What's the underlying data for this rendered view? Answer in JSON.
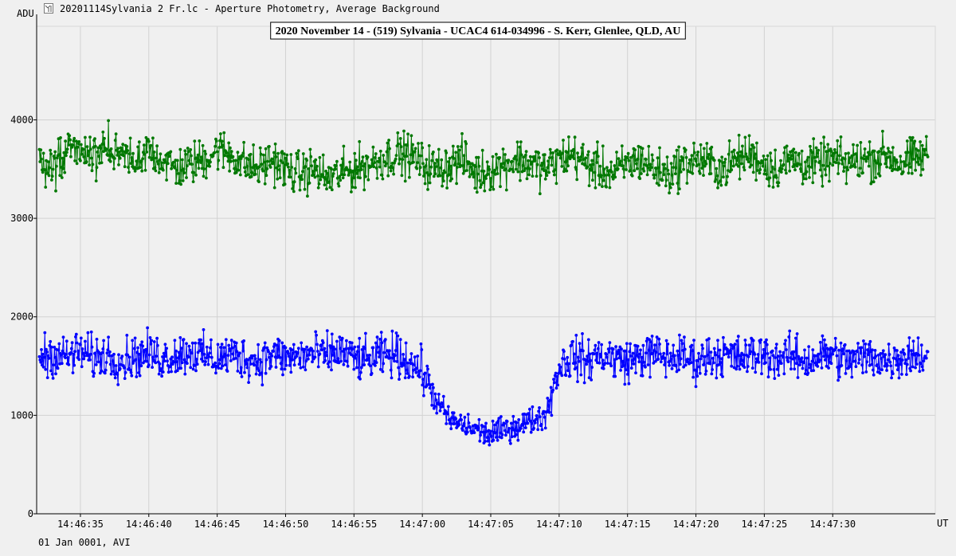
{
  "window": {
    "title": "20201114Sylvania 2 Fr.lc - Aperture Photometry, Average Background",
    "icon": "light-curve-app-icon"
  },
  "footer": {
    "status": "01 Jan 0001, AVI"
  },
  "chart_data": {
    "type": "line",
    "title": "2020 November 14 - (519) Sylvania - UCAC4 614-034996 - S. Kerr, Glenlee, QLD, AU",
    "xlabel": "UT",
    "ylabel": "ADU",
    "x_range": [
      "14:46:31.8",
      "14:47:37.5"
    ],
    "ylim": [
      0,
      4950
    ],
    "x_ticks": [
      "14:46:35",
      "14:46:40",
      "14:46:45",
      "14:46:50",
      "14:46:55",
      "14:47:00",
      "14:47:05",
      "14:47:10",
      "14:47:15",
      "14:47:20",
      "14:47:25",
      "14:47:30"
    ],
    "y_ticks": [
      0,
      1000,
      2000,
      3000,
      4000
    ],
    "grid": true,
    "legend": "none",
    "sampling": "approximately 20 samples per second, point-to-point noise of about ±300 ADU",
    "series": [
      {
        "color": "#007800",
        "step_seconds": 1,
        "start": "14:46:32",
        "values": [
          3600,
          3500,
          3650,
          3700,
          3600,
          3750,
          3650,
          3550,
          3700,
          3600,
          3500,
          3550,
          3600,
          3700,
          3650,
          3550,
          3500,
          3600,
          3500,
          3450,
          3500,
          3400,
          3450,
          3500,
          3550,
          3600,
          3650,
          3650,
          3550,
          3500,
          3550,
          3600,
          3450,
          3500,
          3550,
          3600,
          3550,
          3500,
          3600,
          3650,
          3550,
          3500,
          3450,
          3550,
          3600,
          3500,
          3450,
          3550,
          3600,
          3550,
          3500,
          3600,
          3650,
          3550,
          3500,
          3600,
          3550,
          3550,
          3600,
          3550,
          3600,
          3600,
          3650,
          3550,
          3600,
          3650
        ]
      },
      {
        "color": "#0000ff",
        "step_seconds": 1,
        "start": "14:46:32",
        "values": [
          1600,
          1620,
          1590,
          1650,
          1580,
          1620,
          1550,
          1600,
          1620,
          1580,
          1610,
          1650,
          1600,
          1570,
          1620,
          1580,
          1550,
          1620,
          1580,
          1600,
          1620,
          1600,
          1650,
          1580,
          1550,
          1600,
          1620,
          1550,
          1450,
          1150,
          950,
          900,
          850,
          800,
          850,
          900,
          950,
          1000,
          1500,
          1600,
          1550,
          1620,
          1580,
          1550,
          1600,
          1620,
          1580,
          1600,
          1550,
          1600,
          1620,
          1580,
          1600,
          1620,
          1580,
          1600,
          1550,
          1600,
          1620,
          1550,
          1580,
          1600,
          1550,
          1600,
          1620,
          1580
        ]
      }
    ]
  }
}
